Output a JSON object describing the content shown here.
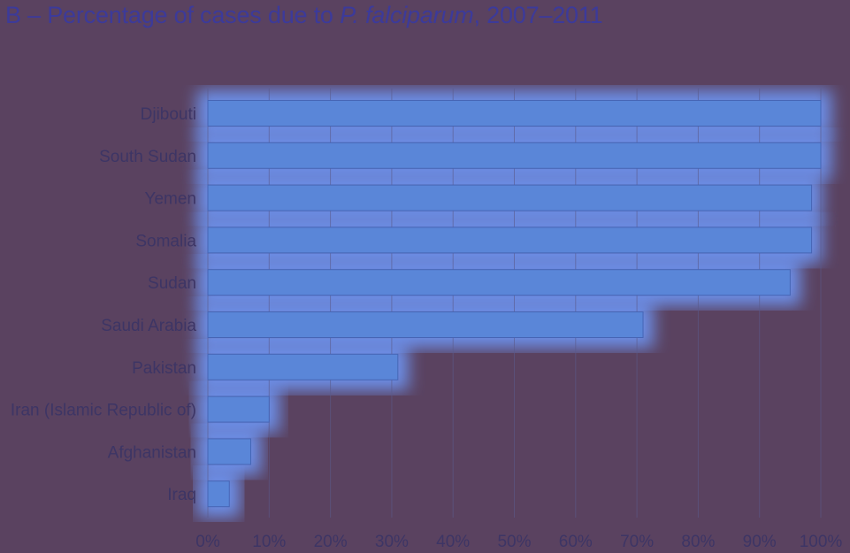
{
  "chart_data": {
    "type": "bar",
    "orientation": "horizontal",
    "title": {
      "prefix": "B – Percentage of cases due to ",
      "italic": "P. falciparum",
      "suffix": ", 2007–2011"
    },
    "categories": [
      "Djibouti",
      "South Sudan",
      "Yemen",
      "Somalia",
      "Sudan",
      "Saudi Arabia",
      "Pakistan",
      "Iran (Islamic Republic of)",
      "Afghanistan",
      "Iraq"
    ],
    "values": [
      100,
      100,
      98.5,
      98.5,
      95,
      71,
      31,
      10,
      7,
      3.5
    ],
    "xlim": [
      0,
      100
    ],
    "xticks": [
      "0%",
      "10%",
      "20%",
      "30%",
      "40%",
      "50%",
      "60%",
      "70%",
      "80%",
      "90%",
      "100%"
    ],
    "grid": true,
    "colors": {
      "background": "#5a4260",
      "plot_glow": "#6f9cff",
      "bar": "#5a86d8",
      "bar_edge": "#4665b5",
      "text": "#3d3565",
      "gridline": "#5a5a8a"
    }
  }
}
